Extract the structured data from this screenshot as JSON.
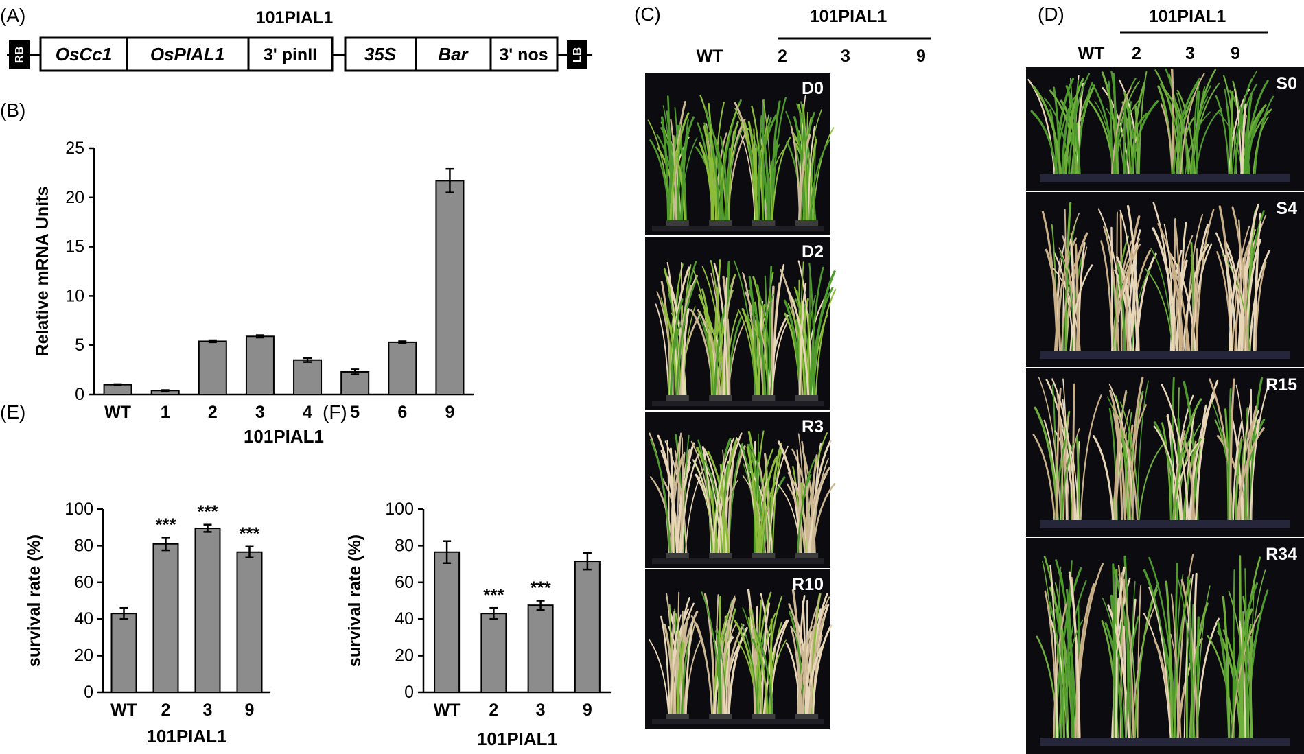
{
  "panels": {
    "a_letter": "(A)",
    "b_letter": "(B)",
    "c_letter": "(C)",
    "d_letter": "(D)",
    "e_letter": "(E)",
    "f_letter": "(F)"
  },
  "construct": {
    "title": "101PIAL1",
    "rb": "RB",
    "lb": "LB",
    "boxes": [
      "OsCc1",
      "OsPIAL1",
      "3' pinII",
      "35S",
      "Bar",
      "3' nos"
    ]
  },
  "photo_c": {
    "group_label": "101PIAL1",
    "columns": [
      "WT",
      "2",
      "3",
      "9"
    ],
    "stages": [
      "D0",
      "D2",
      "R3",
      "R10"
    ]
  },
  "photo_d": {
    "group_label": "101PIAL1",
    "columns": [
      "WT",
      "2",
      "3",
      "9"
    ],
    "stages": [
      "S0",
      "S4",
      "R15",
      "R34"
    ]
  },
  "colors": {
    "bar_fill": "#8c8c8c",
    "photo_bg": "#0c0c10",
    "plant_green": "#4f9a2c",
    "plant_straw": "#e8d6b8"
  },
  "chart_data": [
    {
      "id": "B",
      "type": "bar",
      "categories": [
        "WT",
        "1",
        "2",
        "3",
        "4",
        "5",
        "6",
        "9"
      ],
      "values": [
        1.0,
        0.4,
        5.4,
        5.9,
        3.5,
        2.3,
        5.3,
        21.7
      ],
      "errors": [
        0.05,
        0.05,
        0.1,
        0.12,
        0.2,
        0.25,
        0.1,
        1.2
      ],
      "xlabel": "101PIAL1",
      "ylabel": "Relative mRNA Units",
      "ylim": [
        0,
        25
      ],
      "yticks": [
        "0",
        "5",
        "10",
        "15",
        "20",
        "25"
      ],
      "annotations": []
    },
    {
      "id": "E",
      "type": "bar",
      "categories": [
        "WT",
        "2",
        "3",
        "9"
      ],
      "values": [
        43,
        81,
        89.5,
        76.5
      ],
      "errors": [
        3,
        3.5,
        2,
        3
      ],
      "xlabel": "101PIAL1",
      "ylabel": "survival rate (%)",
      "ylim": [
        0,
        100
      ],
      "yticks": [
        "0",
        "20",
        "40",
        "60",
        "80",
        "100"
      ],
      "annotations": [
        "",
        "***",
        "***",
        "***"
      ]
    },
    {
      "id": "F",
      "type": "bar",
      "categories": [
        "WT",
        "2",
        "3",
        "9"
      ],
      "values": [
        76.5,
        43,
        47.5,
        71.5
      ],
      "errors": [
        6,
        3,
        2.5,
        4.5
      ],
      "xlabel": "101PIAL1",
      "ylabel": "survival rate (%)",
      "ylim": [
        0,
        100
      ],
      "yticks": [
        "0",
        "20",
        "40",
        "60",
        "80",
        "100"
      ],
      "annotations": [
        "",
        "***",
        "***",
        ""
      ]
    }
  ]
}
